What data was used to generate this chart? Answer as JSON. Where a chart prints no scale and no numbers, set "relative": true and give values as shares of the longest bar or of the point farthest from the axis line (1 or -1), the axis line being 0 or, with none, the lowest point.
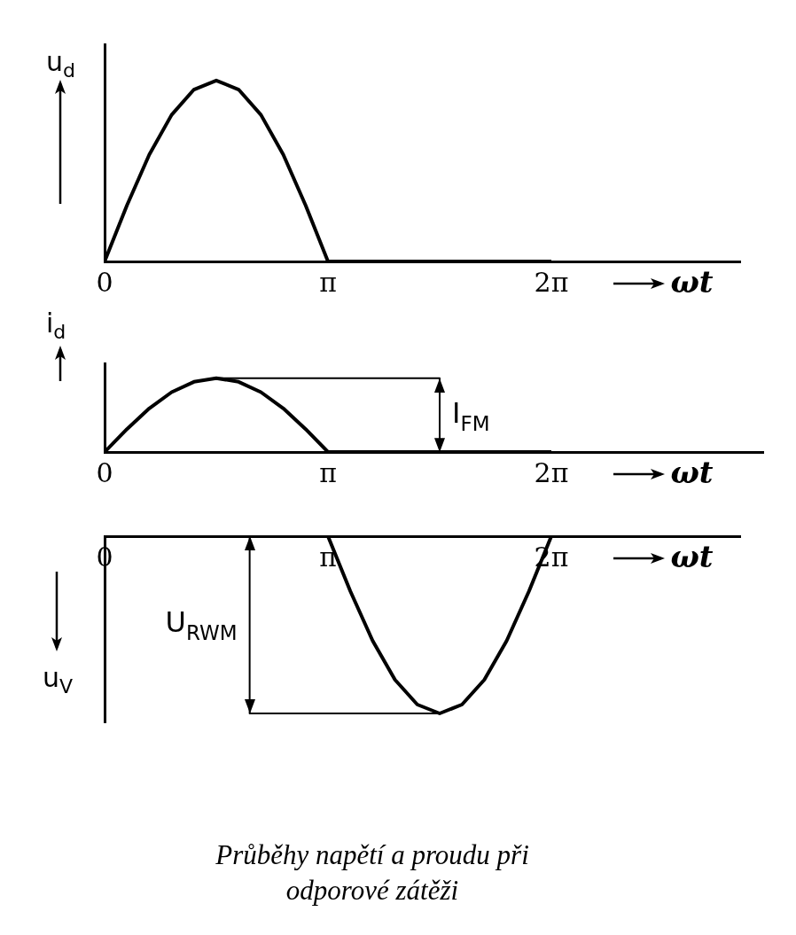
{
  "chart_data": [
    {
      "type": "line",
      "relative": true,
      "ylabel": "u$_{d}$",
      "xlabel": "ωt",
      "xlim": [
        0,
        8.95
      ],
      "xticks": [
        {
          "value": 0,
          "label": "0"
        },
        {
          "value": 3.1416,
          "label": "π"
        },
        {
          "value": 6.2832,
          "label": "2π"
        }
      ],
      "series": [
        {
          "color": "#000000",
          "x": [
            0,
            0.3142,
            0.6283,
            0.9425,
            1.2566,
            1.5708,
            1.885,
            2.1991,
            2.5133,
            2.8274,
            3.1416,
            6.2832
          ],
          "values": [
            0,
            0.31,
            0.59,
            0.81,
            0.95,
            1,
            0.95,
            0.81,
            0.59,
            0.31,
            0,
            0
          ]
        }
      ]
    },
    {
      "type": "line",
      "relative": true,
      "ylabel": "i$_{d}$",
      "xlabel": "ωt",
      "xlim": [
        0,
        9.27
      ],
      "xticks": [
        {
          "value": 0,
          "label": "0"
        },
        {
          "value": 3.1416,
          "label": "π"
        },
        {
          "value": 6.2832,
          "label": "2π"
        }
      ],
      "series": [
        {
          "color": "#000000",
          "x": [
            0,
            0.3142,
            0.6283,
            0.9425,
            1.2566,
            1.5708,
            1.885,
            2.1991,
            2.5133,
            2.8274,
            3.1416,
            6.2832
          ],
          "values": [
            0,
            0.31,
            0.59,
            0.81,
            0.95,
            1,
            0.95,
            0.81,
            0.59,
            0.31,
            0,
            0
          ]
        },
        {
          "color": "#000000",
          "x": [
            1.5708,
            4.7124,
            4.7124
          ],
          "values": [
            1,
            1,
            0
          ]
        }
      ],
      "annotations": [
        {
          "text": "I$_{FM}$",
          "x": 4.7124,
          "y": 0.5
        }
      ]
    },
    {
      "type": "line",
      "relative": true,
      "ylabel": "u$_{V}$",
      "xlabel": "ωt",
      "xlim": [
        0,
        8.95
      ],
      "xticks": [
        {
          "value": 0,
          "label": "0"
        },
        {
          "value": 3.1416,
          "label": "π"
        },
        {
          "value": 6.2832,
          "label": "2π"
        }
      ],
      "series": [
        {
          "color": "#000000",
          "x": [
            0,
            3.1416,
            3.4558,
            3.7699,
            4.0841,
            4.3982,
            4.7124,
            5.0265,
            5.3407,
            5.6549,
            5.969,
            6.2832
          ],
          "values": [
            0,
            0,
            -0.31,
            -0.59,
            -0.81,
            -0.95,
            -1,
            -0.95,
            -0.81,
            -0.59,
            -0.31,
            0
          ]
        },
        {
          "color": "#000000",
          "x": [
            2.04,
            2.04,
            4.7124
          ],
          "values": [
            0,
            -1,
            -1
          ]
        }
      ],
      "annotations": [
        {
          "text": "U$_{RWM}$",
          "x": 2.04,
          "y": -0.5
        }
      ],
      "title": "Průběhy napětí a proudu při odporové zátěži"
    }
  ]
}
